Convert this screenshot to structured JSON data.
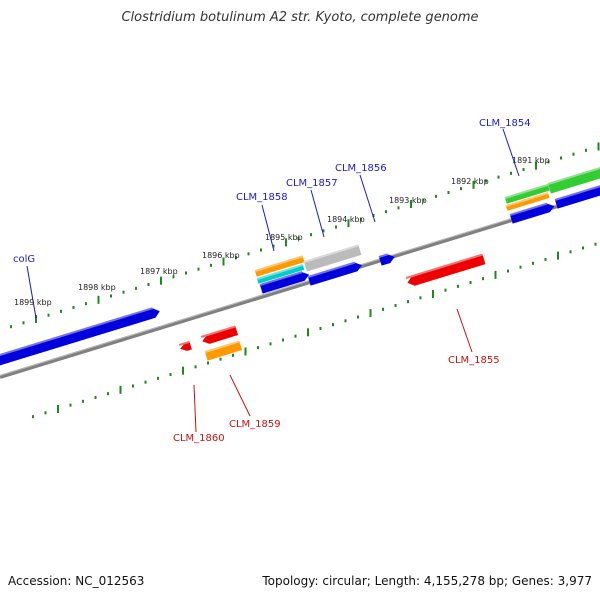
{
  "title": "Clostridium botulinum A2 str. Kyoto, complete genome",
  "footer": {
    "accession": "Accession: NC_012563",
    "summary": "Topology: circular; Length: 4,155,278 bp; Genes: 3,977"
  },
  "colors": {
    "backbone": "#808080",
    "tick": "#1a8a1a",
    "label_forward": "#1a1ad0",
    "label_reverse": "#cc1111",
    "blue": "#0000dd",
    "red": "#ee0000",
    "orange": "#ff9900",
    "cyan": "#00cccc",
    "green": "#33cc33",
    "gray": "#bbbbbb"
  },
  "scale_labels": [
    "1899 kbp",
    "1898 kbp",
    "1897 kbp",
    "1896 kbp",
    "1895 kbp",
    "1894 kbp",
    "1893 kbp",
    "1892 kbp",
    "1891 kbp"
  ],
  "gene_labels": [
    {
      "text": "colG",
      "strand": "forward"
    },
    {
      "text": "CLM_1858",
      "strand": "forward"
    },
    {
      "text": "CLM_1857",
      "strand": "forward"
    },
    {
      "text": "CLM_1856",
      "strand": "forward"
    },
    {
      "text": "CLM_1854",
      "strand": "forward"
    },
    {
      "text": "CLM_1855",
      "strand": "reverse"
    },
    {
      "text": "CLM_1860",
      "strand": "reverse"
    },
    {
      "text": "CLM_1859",
      "strand": "reverse"
    }
  ]
}
